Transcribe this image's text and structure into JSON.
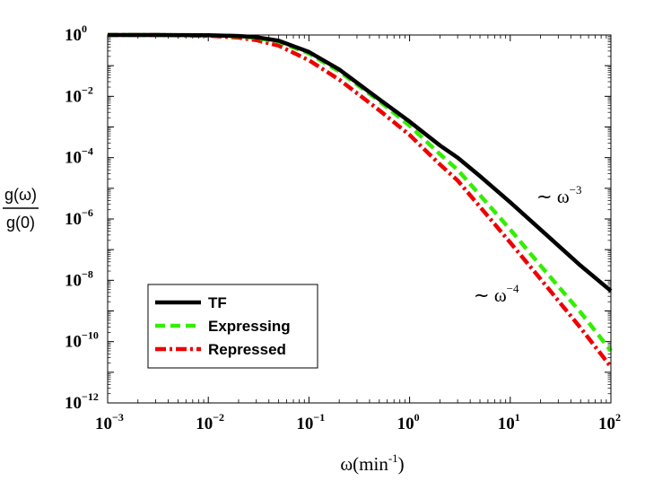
{
  "chart_data": {
    "type": "line",
    "xscale": "log",
    "yscale": "log",
    "xlim": [
      0.001,
      100
    ],
    "ylim": [
      1e-12,
      1
    ],
    "x_tick_exponents": [
      "-3",
      "-2",
      "-1",
      "0",
      "1",
      "2"
    ],
    "y_tick_exponents": [
      "0",
      "-2",
      "-4",
      "-6",
      "-8",
      "-10",
      "-12"
    ],
    "tick_base": "10",
    "xlabel": {
      "main": "ω(min",
      "sup": "-1",
      "close": ")"
    },
    "ylabel": {
      "numerator": "g(ω)",
      "denominator": "g(0)"
    },
    "legend_position": "lower-left",
    "series": [
      {
        "name": "TF",
        "color": "#000000",
        "style": "solid",
        "x": [
          0.001,
          0.003,
          0.01,
          0.02,
          0.03,
          0.05,
          0.1,
          0.2,
          0.5,
          1,
          2,
          3,
          5,
          10,
          20,
          50,
          100
        ],
        "y": [
          1,
          1,
          0.98,
          0.93,
          0.85,
          0.65,
          0.28,
          0.075,
          0.008,
          0.0015,
          0.00025,
          0.0001,
          2.5e-05,
          3.5e-06,
          4.5e-07,
          3e-08,
          4.5e-09
        ]
      },
      {
        "name": "Expressing",
        "color": "#33ee00",
        "style": "dashed",
        "x": [
          0.001,
          0.003,
          0.01,
          0.02,
          0.03,
          0.05,
          0.1,
          0.2,
          0.5,
          1,
          2,
          3,
          5,
          10,
          20,
          50,
          100
        ],
        "y": [
          1,
          1,
          0.97,
          0.9,
          0.8,
          0.6,
          0.25,
          0.065,
          0.007,
          0.0011,
          0.00013,
          4e-05,
          6e-06,
          4.5e-07,
          3e-08,
          9e-10,
          5e-11
        ]
      },
      {
        "name": "Repressed",
        "color": "#ee0000",
        "style": "dashdot",
        "x": [
          0.001,
          0.003,
          0.01,
          0.02,
          0.03,
          0.05,
          0.1,
          0.2,
          0.5,
          1,
          2,
          3,
          5,
          10,
          20,
          50,
          100
        ],
        "y": [
          1,
          1,
          0.95,
          0.82,
          0.68,
          0.45,
          0.15,
          0.035,
          0.0035,
          0.00055,
          6e-05,
          1.8e-05,
          2.5e-06,
          1.7e-07,
          1.1e-08,
          2.8e-10,
          1.5e-11
        ]
      }
    ],
    "annotations": [
      {
        "text": "∼ ω",
        "sup": "−3",
        "near": "TF curve, right"
      },
      {
        "text": "∼ ω",
        "sup": "−4",
        "near": "Expressing/Repressed curves, right"
      }
    ]
  }
}
